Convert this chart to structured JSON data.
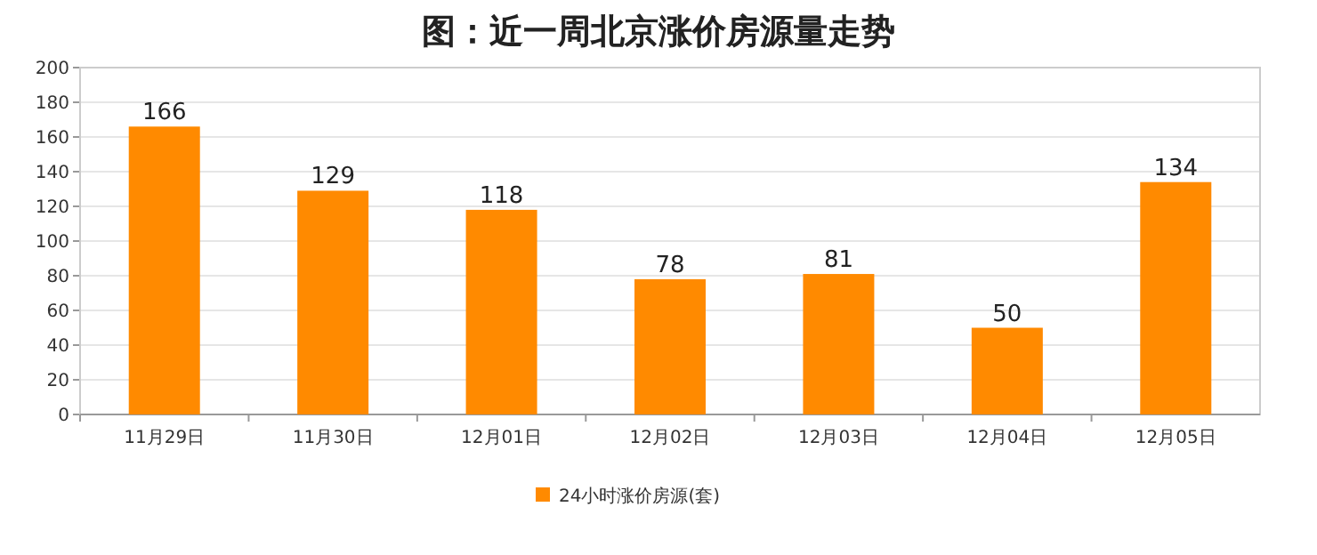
{
  "chart_data": {
    "type": "bar",
    "title": "图：近一周北京涨价房源量走势",
    "categories": [
      "11月29日",
      "11月30日",
      "12月01日",
      "12月02日",
      "12月03日",
      "12月04日",
      "12月05日"
    ],
    "series": [
      {
        "name": "24小时涨价房源(套)",
        "color": "#ff8a00",
        "values": [
          166,
          129,
          118,
          78,
          81,
          50,
          134
        ]
      }
    ],
    "ylim": [
      0,
      200
    ],
    "yticks": [
      0,
      20,
      40,
      60,
      80,
      100,
      120,
      140,
      160,
      180,
      200
    ],
    "grid": "y",
    "legend": "bottom",
    "data_labels": true
  }
}
